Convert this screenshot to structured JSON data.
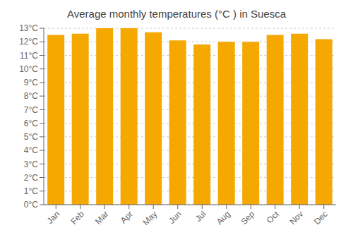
{
  "chart_data": {
    "type": "bar",
    "title": "Average monthly temperatures (°C ) in Suesca",
    "categories": [
      "Jan",
      "Feb",
      "Mar",
      "Apr",
      "May",
      "Jun",
      "Jul",
      "Aug",
      "Sep",
      "Oct",
      "Nov",
      "Dec"
    ],
    "values": [
      12.5,
      12.6,
      13.0,
      13.0,
      12.7,
      12.1,
      11.8,
      12.0,
      12.0,
      12.5,
      12.6,
      12.2
    ],
    "color": "#F5A800",
    "ylim": [
      0,
      13
    ],
    "yticks": [
      {
        "value": 0,
        "label": "0°C"
      },
      {
        "value": 1,
        "label": "1°C"
      },
      {
        "value": 2,
        "label": "2°C"
      },
      {
        "value": 3,
        "label": "3°C"
      },
      {
        "value": 4,
        "label": "4°C"
      },
      {
        "value": 5,
        "label": "5°C"
      },
      {
        "value": 6,
        "label": "6°C"
      },
      {
        "value": 7,
        "label": "7°C"
      },
      {
        "value": 8,
        "label": "8°C"
      },
      {
        "value": 9,
        "label": "9°C"
      },
      {
        "value": 10,
        "label": "10°C"
      },
      {
        "value": 11,
        "label": "11°C"
      },
      {
        "value": 12,
        "label": "12°C"
      },
      {
        "value": 13,
        "label": "13°C"
      }
    ],
    "grid": true
  }
}
